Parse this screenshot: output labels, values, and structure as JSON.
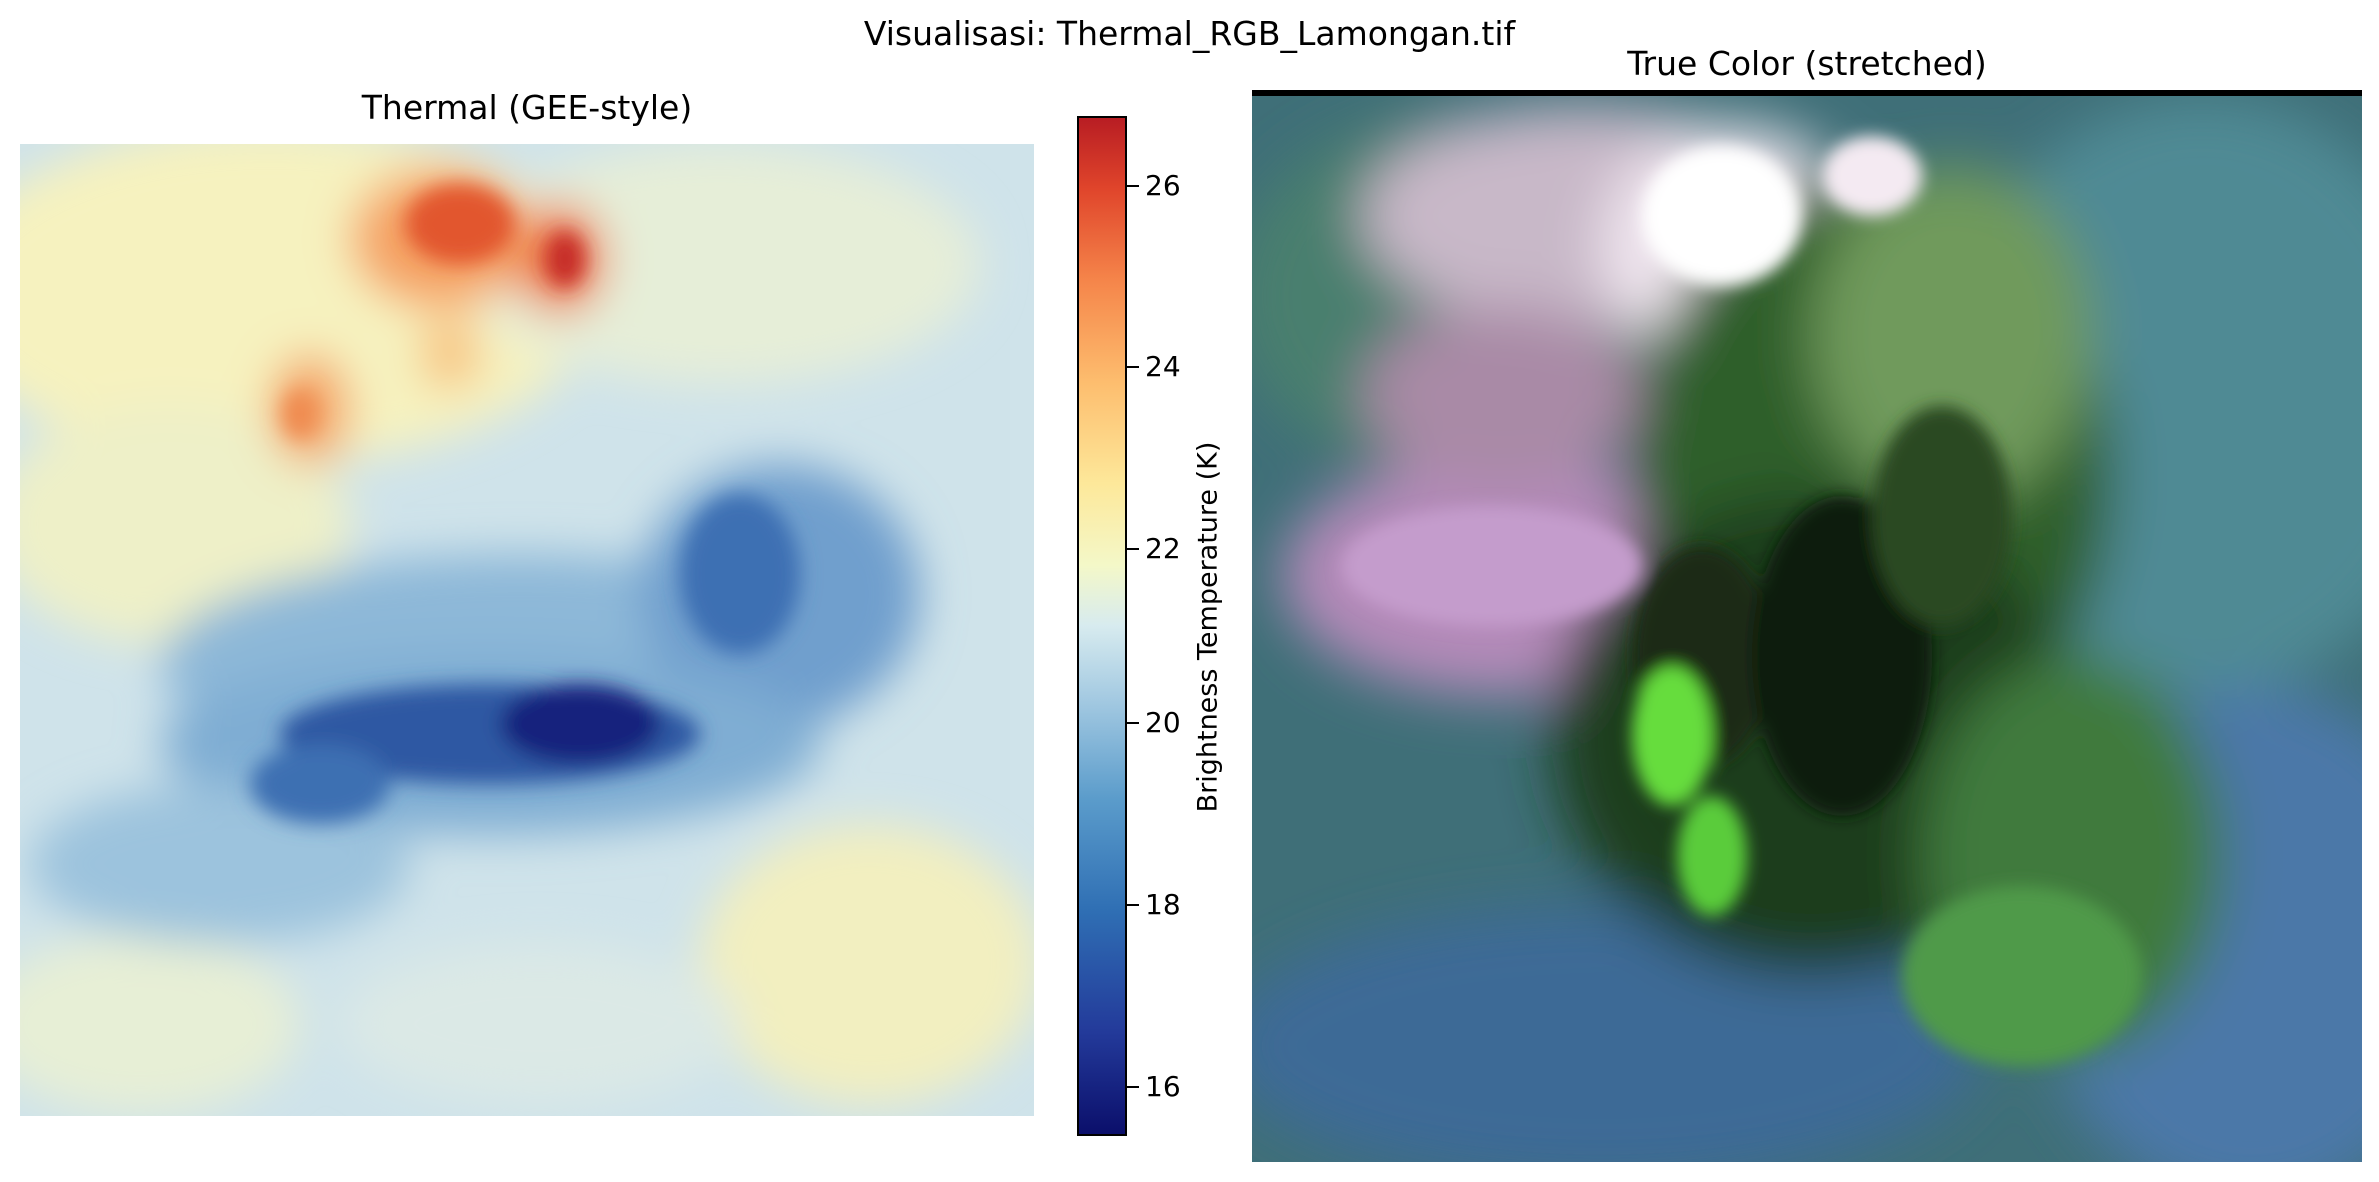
{
  "figure": {
    "suptitle": "Visualisasi: Thermal_RGB_Lamongan.tif"
  },
  "left_panel": {
    "title": "Thermal (GEE-style)",
    "colormap": "RdYlBu_r",
    "colorbar": {
      "label": "Brightness Temperature (K)",
      "ticks": [
        "16",
        "18",
        "20",
        "22",
        "24",
        "26"
      ],
      "range": [
        15.6,
        26.7
      ],
      "colors": [
        "#0b0f6b",
        "#2f6fb4",
        "#9ec6e0",
        "#f4f8c8",
        "#fdbd6e",
        "#b81d23"
      ]
    }
  },
  "right_panel": {
    "title": "True Color (stretched)"
  }
}
